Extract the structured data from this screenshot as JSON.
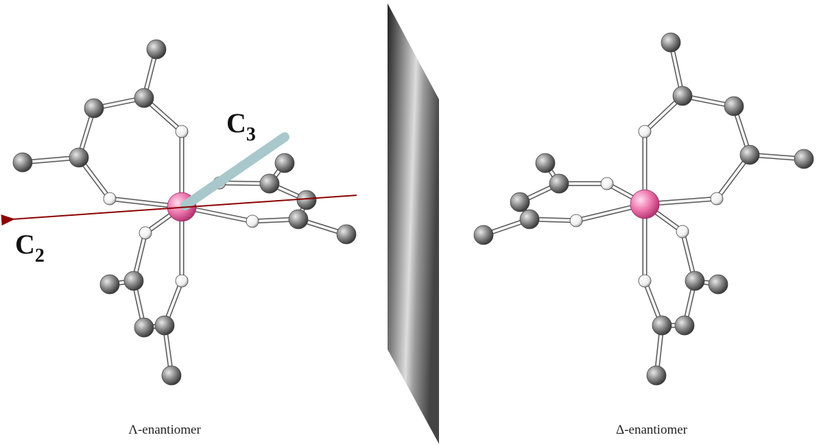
{
  "labels": {
    "c3": {
      "symbol": "C",
      "subscript": "3"
    },
    "c2": {
      "symbol": "C",
      "subscript": "2"
    }
  },
  "captions": {
    "left": "Λ-enantiomer",
    "right": "Δ-enantiomer"
  }
}
